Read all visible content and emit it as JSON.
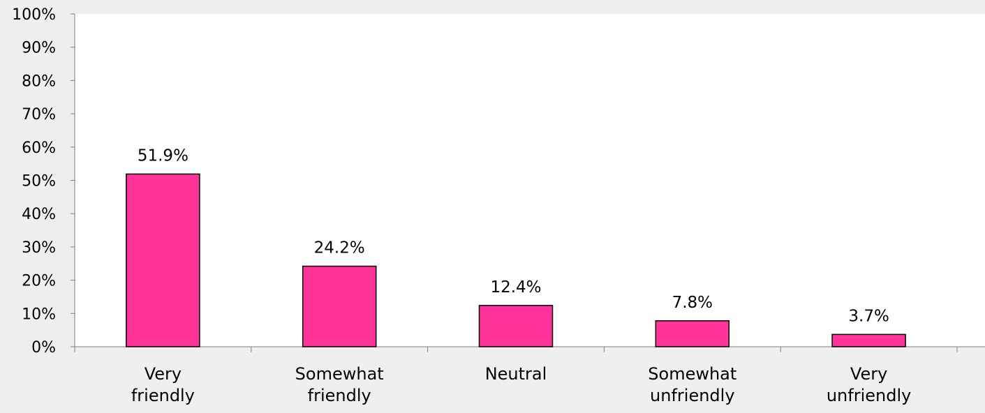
{
  "chart_data": {
    "type": "bar",
    "categories": [
      [
        "Very",
        "friendly"
      ],
      [
        "Somewhat",
        "friendly"
      ],
      [
        "Neutral"
      ],
      [
        "Somewhat",
        "unfriendly"
      ],
      [
        "Very",
        "unfriendly"
      ]
    ],
    "values": [
      51.9,
      24.2,
      12.4,
      7.8,
      3.7
    ],
    "data_labels": [
      "51.9%",
      "24.2%",
      "12.4%",
      "7.8%",
      "3.7%"
    ],
    "ylim": [
      0,
      100
    ],
    "yticks": [
      "0%",
      "10%",
      "20%",
      "30%",
      "40%",
      "50%",
      "60%",
      "70%",
      "80%",
      "90%",
      "100%"
    ],
    "title": "",
    "xlabel": "",
    "ylabel": "",
    "grid": false,
    "legend": "none",
    "colors": {
      "bar_fill": "#ff3399",
      "bar_stroke": "#000000",
      "plot_background": "#ffffff",
      "page_background": "#efefef",
      "axis": "#7f7f7f"
    }
  }
}
